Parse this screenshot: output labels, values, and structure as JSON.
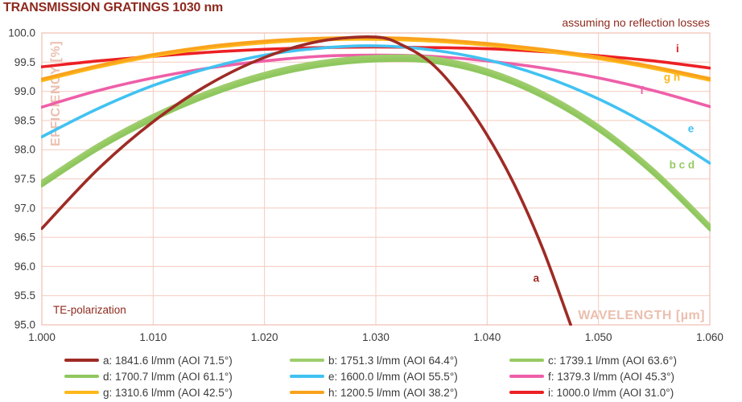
{
  "title": "TRANSMISSION GRATINGS 1030 nm",
  "notes": {
    "top_right": "assuming no reflection losses",
    "bottom_left": "TE-polarization"
  },
  "colors": {
    "title_text": "#8E2A1E",
    "axis_text": "#3a3a3a",
    "grid": "#F4CBBF",
    "border": "#EFBFB2",
    "axis_label_text": "#EBBFAF",
    "background": "#ffffff"
  },
  "chart_data": {
    "type": "line",
    "title": "TRANSMISSION GRATINGS 1030 nm",
    "xlabel": "WAVELENGTH [µm]",
    "ylabel": "EFFICIENCY [%]",
    "xlim": [
      1.0,
      1.06
    ],
    "ylim": [
      95.0,
      100.0
    ],
    "x_ticks": [
      "1.000",
      "1.010",
      "1.020",
      "1.030",
      "1.040",
      "1.050",
      "1.060"
    ],
    "x_tick_values": [
      1.0,
      1.01,
      1.02,
      1.03,
      1.04,
      1.05,
      1.06
    ],
    "y_ticks": [
      "95.0",
      "95.5",
      "96.0",
      "96.5",
      "97.0",
      "97.5",
      "98.0",
      "98.5",
      "99.0",
      "99.5",
      "100.0"
    ],
    "y_tick_values": [
      95.0,
      95.5,
      96.0,
      96.5,
      97.0,
      97.5,
      98.0,
      98.5,
      99.0,
      99.5,
      100.0
    ],
    "grid": true,
    "legend_position": "bottom",
    "draw_order": [
      "i",
      "f",
      "e",
      "b",
      "c",
      "d",
      "g",
      "h",
      "a"
    ],
    "series": [
      {
        "id": "a",
        "label": "a: 1841.6 l/mm (AOI 71.5°)",
        "color": "#9E2B25",
        "x": [
          1.0,
          1.005,
          1.01,
          1.015,
          1.02,
          1.025,
          1.03,
          1.0325,
          1.035,
          1.0375,
          1.04,
          1.0425,
          1.045,
          1.0475
        ],
        "y": [
          96.65,
          97.66,
          98.48,
          99.12,
          99.58,
          99.86,
          99.93,
          99.78,
          99.48,
          98.95,
          98.25,
          97.38,
          96.3,
          95.0
        ]
      },
      {
        "id": "b",
        "label": "b: 1751.3 l/mm (AOI 64.4°)",
        "color": "#9ECD6C",
        "x": [
          1.0,
          1.005,
          1.01,
          1.015,
          1.02,
          1.025,
          1.03,
          1.035,
          1.04,
          1.045,
          1.05,
          1.055,
          1.06
        ],
        "y": [
          97.46,
          98.08,
          98.59,
          99.0,
          99.31,
          99.51,
          99.6,
          99.58,
          99.37,
          98.98,
          98.41,
          97.65,
          96.71
        ]
      },
      {
        "id": "c",
        "label": "c: 1739.1 l/mm (AOI 63.6°)",
        "color": "#97CA64",
        "x": [
          1.0,
          1.005,
          1.01,
          1.015,
          1.02,
          1.025,
          1.03,
          1.035,
          1.04,
          1.045,
          1.05,
          1.055,
          1.06
        ],
        "y": [
          97.42,
          98.04,
          98.55,
          98.96,
          99.27,
          99.47,
          99.56,
          99.54,
          99.33,
          98.94,
          98.37,
          97.61,
          96.67
        ]
      },
      {
        "id": "d",
        "label": "d: 1700.7 l/mm (AOI 61.1°)",
        "color": "#8FC75F",
        "x": [
          1.0,
          1.005,
          1.01,
          1.015,
          1.02,
          1.025,
          1.03,
          1.035,
          1.04,
          1.045,
          1.05,
          1.055,
          1.06
        ],
        "y": [
          97.38,
          98.0,
          98.51,
          98.92,
          99.23,
          99.43,
          99.52,
          99.5,
          99.29,
          98.9,
          98.33,
          97.57,
          96.63
        ]
      },
      {
        "id": "e",
        "label": "e: 1600.0 l/mm (AOI 55.5°)",
        "color": "#41C2F1",
        "x": [
          1.0,
          1.005,
          1.01,
          1.015,
          1.02,
          1.025,
          1.03,
          1.035,
          1.04,
          1.045,
          1.05,
          1.055,
          1.06
        ],
        "y": [
          98.22,
          98.7,
          99.1,
          99.4,
          99.62,
          99.74,
          99.78,
          99.71,
          99.54,
          99.26,
          98.87,
          98.37,
          97.77
        ]
      },
      {
        "id": "f",
        "label": "f: 1379.3 l/mm (AOI 45.3°)",
        "color": "#EE5FA8",
        "x": [
          1.0,
          1.005,
          1.01,
          1.015,
          1.02,
          1.025,
          1.03,
          1.035,
          1.04,
          1.045,
          1.05,
          1.055,
          1.06
        ],
        "y": [
          98.73,
          99.01,
          99.23,
          99.4,
          99.52,
          99.6,
          99.62,
          99.6,
          99.52,
          99.4,
          99.23,
          99.01,
          98.74
        ]
      },
      {
        "id": "g",
        "label": "g: 1310.6 l/mm (AOI 42.5°)",
        "color": "#FDB71A",
        "x": [
          1.0,
          1.005,
          1.01,
          1.015,
          1.02,
          1.025,
          1.03,
          1.035,
          1.04,
          1.045,
          1.05,
          1.055,
          1.06
        ],
        "y": [
          99.18,
          99.41,
          99.6,
          99.74,
          99.83,
          99.88,
          99.89,
          99.86,
          99.79,
          99.69,
          99.56,
          99.39,
          99.19
        ]
      },
      {
        "id": "h",
        "label": "h: 1200.5 l/mm (AOI 38.2°)",
        "color": "#FAA21C",
        "x": [
          1.0,
          1.005,
          1.01,
          1.015,
          1.02,
          1.025,
          1.03,
          1.035,
          1.04,
          1.045,
          1.05,
          1.055,
          1.06
        ],
        "y": [
          99.21,
          99.44,
          99.63,
          99.77,
          99.86,
          99.91,
          99.92,
          99.89,
          99.82,
          99.72,
          99.59,
          99.42,
          99.22
        ]
      },
      {
        "id": "i",
        "label": "i: 1000.0 l/mm (AOI 31.0°)",
        "color": "#EC2024",
        "x": [
          1.0,
          1.005,
          1.01,
          1.015,
          1.02,
          1.025,
          1.03,
          1.035,
          1.04,
          1.045,
          1.05,
          1.055,
          1.06
        ],
        "y": [
          99.42,
          99.52,
          99.6,
          99.67,
          99.72,
          99.75,
          99.76,
          99.75,
          99.73,
          99.68,
          99.61,
          99.52,
          99.4
        ]
      }
    ],
    "annotations": [
      {
        "text": "i",
        "series": "i",
        "x": 1.0571,
        "y": 99.67
      },
      {
        "text": "g h",
        "series": "g",
        "x": 1.0566,
        "y": 99.18
      },
      {
        "text": "f",
        "series": "f",
        "x": 1.0539,
        "y": 98.95
      },
      {
        "text": "e",
        "series": "e",
        "x": 1.0583,
        "y": 98.3
      },
      {
        "text": "b c d",
        "series": "c",
        "x": 1.0575,
        "y": 97.68
      },
      {
        "text": "a",
        "series": "a",
        "x": 1.0444,
        "y": 95.74
      }
    ]
  }
}
